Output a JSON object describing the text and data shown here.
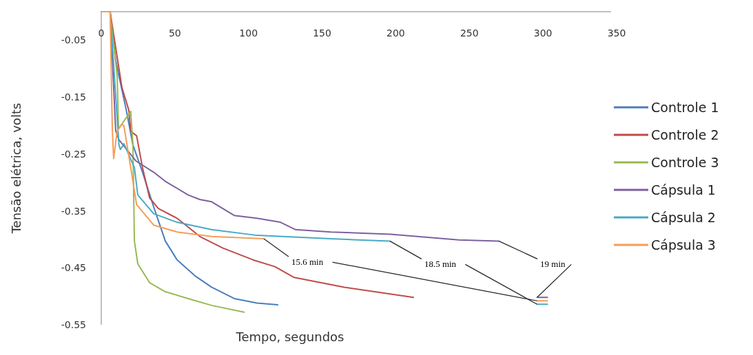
{
  "chart_data": {
    "type": "line",
    "xlabel": "Tempo, segundos",
    "ylabel": "Tensão elétrica, volts",
    "xlim": [
      0,
      350
    ],
    "xticks": [
      0,
      50,
      100,
      150,
      200,
      250,
      300,
      350
    ],
    "ylim": [
      -0.55,
      0
    ],
    "yticks": [
      -0.05,
      -0.15,
      -0.25,
      -0.35,
      -0.45,
      -0.55
    ],
    "grid": false,
    "legend": "right",
    "marker": "none",
    "line_style": "solid",
    "series": [
      {
        "name": "Controle 1",
        "color": "#4a7ebb",
        "x": [
          0,
          6,
          9.8,
          12,
          17,
          21.5,
          28,
          35.6,
          43.5,
          51.5,
          63.6,
          74.9,
          90.3,
          105.8,
          119.8
        ],
        "values": [
          0,
          0,
          -0.085,
          -0.113,
          -0.173,
          -0.234,
          -0.282,
          -0.343,
          -0.403,
          -0.436,
          -0.464,
          -0.484,
          -0.504,
          -0.512,
          -0.515
        ]
      },
      {
        "name": "Controle 2",
        "color": "#be4b48",
        "x": [
          0,
          6,
          14,
          18.7,
          20,
          24,
          28,
          32.8,
          38.8,
          51.5,
          67,
          82.4,
          103,
          118,
          131,
          165,
          212
        ],
        "values": [
          0,
          0,
          -0.133,
          -0.173,
          -0.21,
          -0.218,
          -0.274,
          -0.327,
          -0.346,
          -0.363,
          -0.395,
          -0.415,
          -0.436,
          -0.448,
          -0.467,
          -0.484,
          -0.502
        ]
      },
      {
        "name": "Controle 3",
        "color": "#98b954",
        "x": [
          0,
          6,
          10.8,
          11.7,
          20,
          21.5,
          22.5,
          24.8,
          32.8,
          43.5,
          59,
          74.9,
          97
        ],
        "values": [
          0,
          0,
          -0.113,
          -0.206,
          -0.175,
          -0.234,
          -0.403,
          -0.443,
          -0.476,
          -0.492,
          -0.504,
          -0.516,
          -0.528
        ]
      },
      {
        "name": "Cápsula 1",
        "color": "#7d60a0",
        "x": [
          0,
          6,
          9.8,
          12,
          23.4,
          35.6,
          43.5,
          59,
          67,
          75,
          90.3,
          105.8,
          121.7,
          132,
          156,
          196.5,
          243,
          270,
          283,
          296,
          303
        ],
        "values": [
          0,
          0,
          -0.209,
          -0.225,
          -0.262,
          -0.282,
          -0.298,
          -0.322,
          -0.33,
          -0.334,
          -0.358,
          -0.363,
          -0.37,
          -0.383,
          -0.387,
          -0.391,
          -0.401,
          -0.403,
          null,
          -0.502,
          -0.502
        ]
      },
      {
        "name": "Cápsula 2",
        "color": "#46aac5",
        "x": [
          0,
          6,
          12,
          13,
          15.4,
          22.5,
          24.8,
          35.6,
          51.5,
          75,
          105.8,
          156,
          196,
          250,
          296,
          303
        ],
        "values": [
          0,
          0,
          -0.234,
          -0.242,
          -0.232,
          -0.274,
          -0.322,
          -0.355,
          -0.37,
          -0.383,
          -0.393,
          -0.399,
          -0.403,
          null,
          -0.514,
          -0.514
        ]
      },
      {
        "name": "Cápsula 3",
        "color": "#f59d56",
        "x": [
          0,
          6,
          7.5,
          8.4,
          10.8,
          14,
          15.4,
          20,
          24,
          35.6,
          51.5,
          75,
          110.4,
          200,
          296,
          303
        ],
        "values": [
          0,
          0,
          -0.206,
          -0.258,
          -0.21,
          -0.197,
          -0.201,
          -0.274,
          -0.339,
          -0.375,
          -0.387,
          -0.395,
          -0.399,
          null,
          -0.508,
          -0.508
        ]
      }
    ],
    "annotations": [
      {
        "text": "15.6 min",
        "x": 110.4,
        "y": -0.399
      },
      {
        "text": "18.5 min",
        "x": 196,
        "y": -0.403
      },
      {
        "text": "19 min",
        "x": 270,
        "y": -0.403
      }
    ]
  }
}
